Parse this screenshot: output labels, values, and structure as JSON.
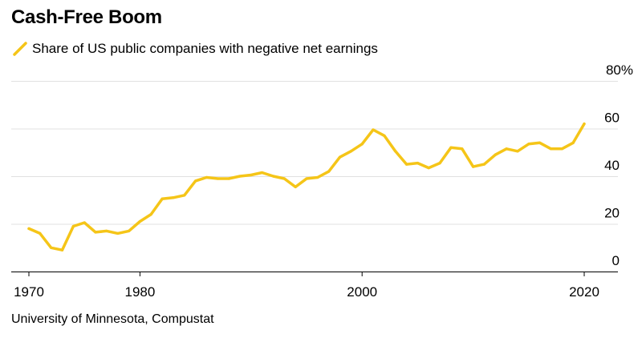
{
  "title": "Cash-Free Boom",
  "source": "University of Minnesota, Compustat",
  "colors": {
    "line": "#f5c518",
    "grid": "#e1e1e1",
    "axis": "#000000"
  },
  "chart_data": {
    "type": "line",
    "title": "Cash-Free Boom",
    "xlabel": "",
    "ylabel": "",
    "legend": "top-left",
    "grid": true,
    "xlim": [
      1967.5,
      2021.5
    ],
    "ylim": [
      -5,
      80
    ],
    "x_ticks": [
      1970,
      1980,
      2000,
      2020
    ],
    "x_tick_labels": [
      "1970",
      "1980",
      "2000",
      "2020"
    ],
    "y_ticks": [
      0,
      20,
      40,
      60,
      80
    ],
    "y_tick_labels": [
      "0",
      "20",
      "40",
      "60",
      "80%"
    ],
    "series": [
      {
        "name": "Share of US public companies with negative net earnings",
        "x": [
          1970,
          1971,
          1972,
          1973,
          1974,
          1975,
          1976,
          1977,
          1978,
          1979,
          1980,
          1981,
          1982,
          1983,
          1984,
          1985,
          1986,
          1987,
          1988,
          1989,
          1990,
          1991,
          1992,
          1993,
          1994,
          1995,
          1996,
          1997,
          1998,
          1999,
          2000,
          2001,
          2002,
          2003,
          2004,
          2005,
          2006,
          2007,
          2008,
          2009,
          2010,
          2011,
          2012,
          2013,
          2014,
          2015,
          2016,
          2017,
          2018,
          2019,
          2020
        ],
        "values": [
          18,
          16,
          10,
          9,
          19,
          20.5,
          16.5,
          17,
          16,
          17,
          21,
          24,
          30.5,
          31,
          32,
          38,
          39.5,
          39,
          39,
          40,
          40.5,
          41.5,
          40,
          39,
          35.5,
          39,
          39.5,
          42,
          48,
          50.5,
          53.5,
          59.5,
          57,
          50.5,
          45,
          45.5,
          43.5,
          45.5,
          52,
          51.5,
          44,
          45,
          49,
          51.5,
          50.5,
          53.5,
          54,
          51.5,
          51.5,
          54,
          62
        ]
      }
    ]
  }
}
